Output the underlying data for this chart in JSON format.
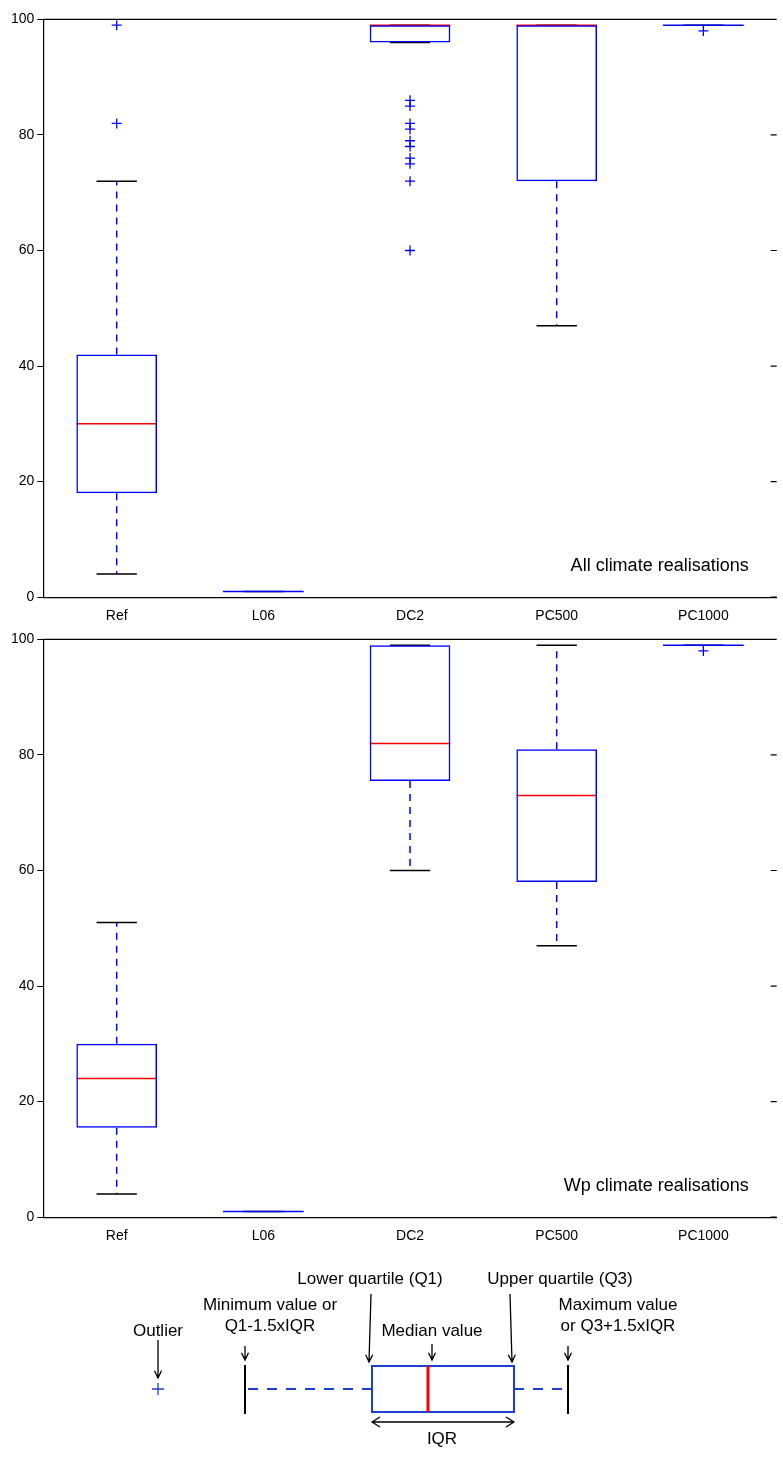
{
  "chart_data": [
    {
      "type": "box",
      "categories": [
        "Ref",
        "L06",
        "DC2",
        "PC500",
        "PC1000"
      ],
      "ylim": [
        0,
        100
      ],
      "yticks": [
        0,
        20,
        40,
        60,
        80,
        100
      ],
      "grid": false,
      "annotations": [
        "All climate realisations"
      ],
      "series": [
        {
          "color": "#0000ff",
          "boxes": [
            {
              "low": 4,
              "q1": 18,
              "median": 30,
              "q3": 42,
              "high": 72,
              "outliers": [
                82,
                99
              ]
            },
            {
              "low": 1,
              "q1": 1,
              "median": 1,
              "q3": 1,
              "high": 1
            },
            {
              "low": 96,
              "q1": 96,
              "median": 99,
              "q3": 99,
              "high": 99,
              "outliers": [
                86,
                85,
                82,
                81,
                79,
                78,
                76,
                75,
                72,
                60
              ]
            },
            {
              "low": 47,
              "q1": 72,
              "median": 99,
              "q3": 99,
              "high": 99
            },
            {
              "low": 99,
              "q1": 99,
              "median": 99,
              "q3": 99,
              "high": 99,
              "outliers": [
                98
              ]
            }
          ]
        }
      ]
    },
    {
      "type": "box",
      "categories": [
        "Ref",
        "L06",
        "DC2",
        "PC500",
        "PC1000"
      ],
      "ylim": [
        0,
        100
      ],
      "yticks": [
        0,
        20,
        40,
        60,
        80,
        100
      ],
      "grid": false,
      "annotations": [
        "Wp climate realisations"
      ],
      "series": [
        {
          "color": "#0000ff",
          "boxes": [
            {
              "low": 4,
              "q1": 15.5,
              "median": 24,
              "q3": 30,
              "high": 51
            },
            {
              "low": 1,
              "q1": 1,
              "median": 1,
              "q3": 1,
              "high": 1
            },
            {
              "low": 60,
              "q1": 75.5,
              "median": 82,
              "q3": 99,
              "high": 99
            },
            {
              "low": 47,
              "q1": 58,
              "median": 73,
              "q3": 81,
              "high": 99
            },
            {
              "low": 99,
              "q1": 99,
              "median": 99,
              "q3": 99,
              "high": 99,
              "outliers": [
                98
              ]
            }
          ]
        }
      ]
    },
    {
      "type": "other",
      "annotations": [
        "Outlier",
        "Minimum value or Q1-1.5xIQR",
        "Lower quartile (Q1)",
        "Median value",
        "Upper quartile (Q3)",
        "Maximum value or Q3+1.5xIQR",
        "IQR"
      ]
    }
  ]
}
